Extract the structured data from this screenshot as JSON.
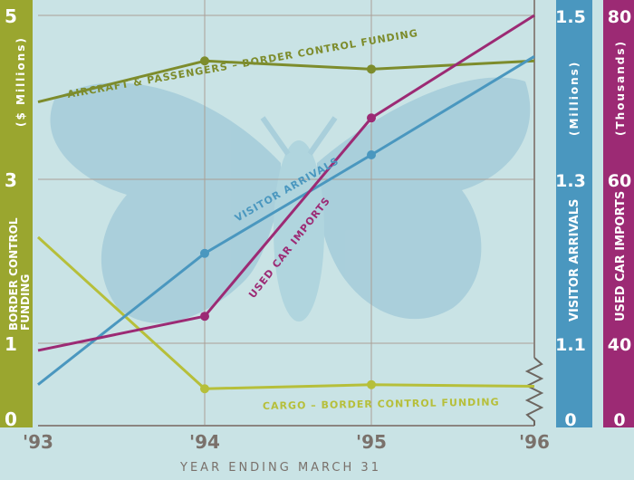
{
  "chart_data": {
    "type": "line",
    "title": "",
    "xlabel": "YEAR ENDING MARCH 31",
    "x_ticks": [
      "'93",
      "'94",
      "'95",
      "'96"
    ],
    "axes": {
      "left": {
        "title": "BORDER CONTROL FUNDING",
        "unit": "($ Millions)",
        "ticks": [
          "0",
          "1",
          "3",
          "5"
        ],
        "range": [
          0,
          5
        ],
        "color": "#9aa62f"
      },
      "visitor": {
        "title": "VISITOR ARRIVALS",
        "unit": "(Millions)",
        "ticks": [
          "0",
          "1.1",
          "1.3",
          "1.5"
        ],
        "range_note": "axis broken between 0 and 1.0",
        "range": [
          1.0,
          1.5
        ],
        "color": "#4a97bf"
      },
      "imports": {
        "title": "USED CAR IMPORTS",
        "unit": "(Thousands)",
        "ticks": [
          "0",
          "40",
          "60",
          "80"
        ],
        "range": [
          20,
          80
        ],
        "color": "#9c2a74"
      }
    },
    "series": [
      {
        "name": "AIRCRAFT & PASSENGERS – BORDER CONTROL FUNDING",
        "axis": "left",
        "color": "#7d8c2c",
        "values": [
          3.95,
          4.45,
          4.35,
          4.45
        ]
      },
      {
        "name": "CARGO – BORDER CONTROL FUNDING",
        "axis": "left",
        "color": "#b6bf3a",
        "values": [
          2.3,
          0.45,
          0.5,
          0.48
        ]
      },
      {
        "name": "VISITOR ARRIVALS",
        "axis": "visitor",
        "color": "#4a97bf",
        "values": [
          1.05,
          1.21,
          1.33,
          1.45
        ]
      },
      {
        "name": "USED CAR IMPORTS",
        "axis": "imports",
        "color": "#9c2a74",
        "values": [
          31,
          36,
          65,
          80
        ]
      }
    ],
    "grid": true,
    "legend": "inline labels along lines"
  }
}
